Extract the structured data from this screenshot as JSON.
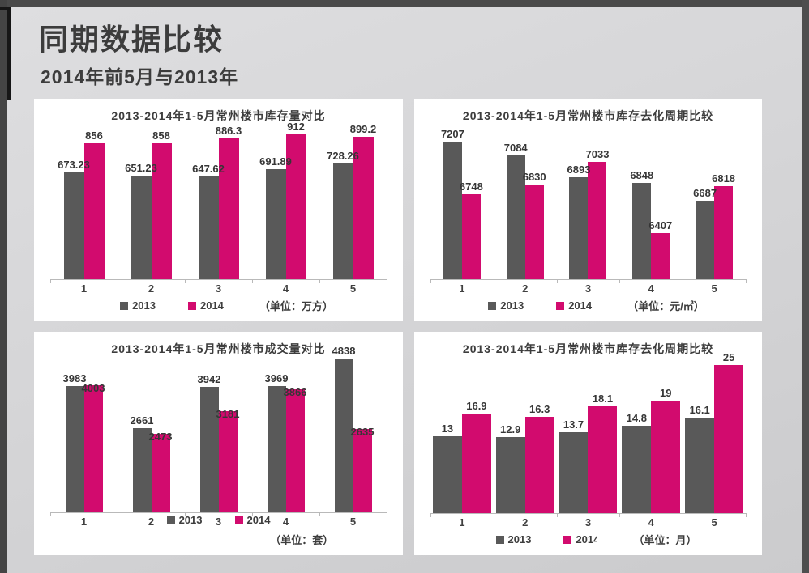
{
  "page": {
    "title": "同期数据比较",
    "subtitle": "2014年前5月与2013年"
  },
  "colors": {
    "series_2013": "#595959",
    "series_2014": "#d20b6e",
    "frame": "#4a4a4a",
    "panel_background": "#ffffff",
    "text": "#3f3f3f",
    "axis_line": "#b9b9b9"
  },
  "chart_data": [
    {
      "type": "bar",
      "title": "2013-2014年1-5月常州楼市库存量对比",
      "categories": [
        "1",
        "2",
        "3",
        "4",
        "5"
      ],
      "series": [
        {
          "name": "2013",
          "color": "#595959",
          "values": [
            673.23,
            651.23,
            647.62,
            691.89,
            728.26
          ],
          "labels": [
            "673.23",
            "651.23",
            "647.62",
            "691.89",
            "728.26"
          ]
        },
        {
          "name": "2014",
          "color": "#d20b6e",
          "values": [
            856,
            858,
            886.3,
            912,
            899.2
          ],
          "labels": [
            "856",
            "858",
            "886.3",
            "912",
            "899.2"
          ]
        }
      ],
      "unit_label": "（单位：万方）",
      "ylim": [
        0,
        1000
      ],
      "grid": false,
      "legend_position": "bottom"
    },
    {
      "type": "bar",
      "title": "2013-2014年1-5月常州楼市库存去化周期比较",
      "categories": [
        "1",
        "2",
        "3",
        "4",
        "5"
      ],
      "series": [
        {
          "name": "2013",
          "color": "#595959",
          "values": [
            7207,
            7084,
            6893,
            6848,
            6687
          ],
          "labels": [
            "7207",
            "7084",
            "6893",
            "6848",
            "6687"
          ]
        },
        {
          "name": "2014",
          "color": "#d20b6e",
          "values": [
            6748,
            6830,
            7033,
            6407,
            6818
          ],
          "labels": [
            "6748",
            "6830",
            "7033",
            "6407",
            "6818"
          ]
        }
      ],
      "unit_label": "（单位：元/㎡）",
      "ylim": [
        6000,
        7350
      ],
      "grid": false,
      "legend_position": "bottom"
    },
    {
      "type": "bar",
      "title": "2013-2014年1-5月常州楼市成交量对比",
      "categories": [
        "1",
        "2",
        "3",
        "4",
        "5"
      ],
      "series": [
        {
          "name": "2013",
          "color": "#595959",
          "values": [
            3983,
            2661,
            3942,
            3969,
            4838
          ],
          "labels": [
            "3983",
            "2661",
            "3942",
            "3969",
            "4838"
          ]
        },
        {
          "name": "2014",
          "color": "#d20b6e",
          "values": [
            4003,
            2473,
            3181,
            3866,
            2635
          ],
          "labels": [
            "4003",
            "2473",
            "3181",
            "3866",
            "2635"
          ]
        }
      ],
      "unit_label": "（单位：套）",
      "ylim": [
        0,
        5000
      ],
      "grid": false,
      "legend_position": "overlap-xlabels"
    },
    {
      "type": "bar",
      "title": "2013-2014年1-5月常州楼市库存去化周期比较",
      "categories": [
        "1",
        "2",
        "3",
        "4",
        "5"
      ],
      "series": [
        {
          "name": "2013",
          "color": "#595959",
          "values": [
            13,
            12.9,
            13.7,
            14.8,
            16.1
          ],
          "labels": [
            "13",
            "12.9",
            "13.7",
            "14.8",
            "16.1"
          ]
        },
        {
          "name": "2014",
          "color": "#d20b6e",
          "values": [
            16.9,
            16.3,
            18.1,
            19,
            25
          ],
          "labels": [
            "16.9",
            "16.3",
            "18.1",
            "19",
            "25"
          ]
        }
      ],
      "unit_label": "（单位：月）",
      "ylim": [
        0,
        26
      ],
      "grid": false,
      "legend_position": "bottom",
      "legend_second_label_clipped": true
    }
  ]
}
